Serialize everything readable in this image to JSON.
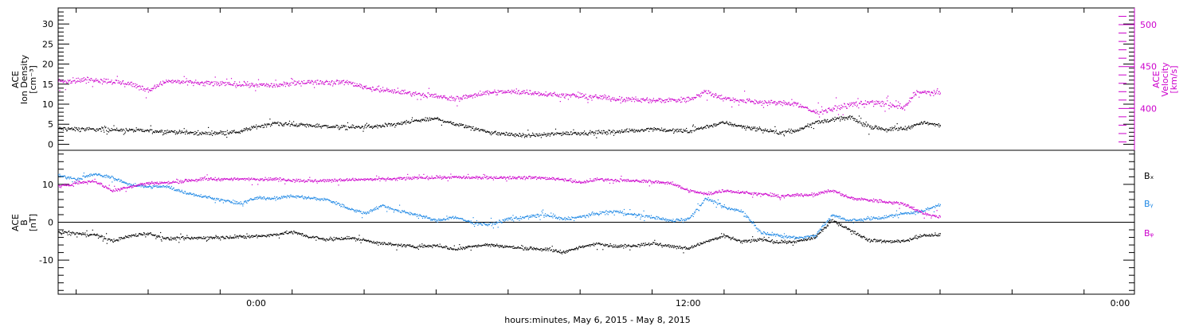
{
  "colors": {
    "black": "#000000",
    "magenta": "#cc00cc",
    "blue": "#1e88e5"
  },
  "xaxis": {
    "label": "hours:minutes, May  6, 2015 - May  8, 2015",
    "tick_labels": [
      "0:00",
      "12:00",
      "0:00"
    ],
    "range_hours": [
      -5.5,
      24.4
    ]
  },
  "chart_data": [
    {
      "type": "scatter",
      "title": "",
      "ylabel": [
        "ACE",
        "Ion Density",
        "[cm⁻³]"
      ],
      "ylabel_right": [
        "ACE",
        "Velocity",
        "[km/s]"
      ],
      "ylim": [
        -1.5,
        34
      ],
      "ylim_right": [
        350,
        520
      ],
      "yticks": [
        0,
        5,
        10,
        15,
        20,
        25,
        30
      ],
      "yticks_right": [
        400,
        450,
        500
      ],
      "series": [
        {
          "axis": "left",
          "color": "black",
          "points": [
            [
              -5.5,
              4.0
            ],
            [
              -4.5,
              3.8
            ],
            [
              -3.5,
              3.6
            ],
            [
              -2.5,
              3.3
            ],
            [
              -1.5,
              2.8
            ],
            [
              -0.5,
              3.2
            ],
            [
              0.0,
              4.5
            ],
            [
              0.5,
              5.3
            ],
            [
              1.5,
              4.8
            ],
            [
              2.5,
              4.3
            ],
            [
              3.5,
              4.6
            ],
            [
              4.0,
              5.3
            ],
            [
              4.5,
              6.0
            ],
            [
              5.0,
              6.5
            ],
            [
              5.5,
              5.2
            ],
            [
              6.0,
              4.2
            ],
            [
              6.5,
              3.0
            ],
            [
              7.5,
              2.2
            ],
            [
              8.5,
              2.8
            ],
            [
              9.5,
              3.0
            ],
            [
              10.5,
              3.5
            ],
            [
              11.0,
              4.0
            ],
            [
              11.5,
              3.5
            ],
            [
              12.0,
              3.3
            ],
            [
              12.5,
              4.5
            ],
            [
              13.0,
              5.5
            ],
            [
              13.5,
              4.5
            ],
            [
              14.0,
              3.8
            ],
            [
              14.5,
              3.0
            ],
            [
              15.0,
              3.5
            ],
            [
              15.5,
              5.5
            ],
            [
              16.0,
              6.2
            ],
            [
              16.5,
              6.8
            ],
            [
              17.0,
              4.5
            ],
            [
              17.5,
              3.8
            ],
            [
              18.0,
              4.0
            ],
            [
              18.5,
              5.5
            ],
            [
              19.0,
              4.8
            ]
          ]
        },
        {
          "axis": "right",
          "color": "magenta",
          "points": [
            [
              -5.5,
              433
            ],
            [
              -4.5,
              435
            ],
            [
              -3.5,
              430
            ],
            [
              -3.0,
              422
            ],
            [
              -2.5,
              433
            ],
            [
              -1.5,
              431
            ],
            [
              -0.5,
              429
            ],
            [
              0.5,
              428
            ],
            [
              1.5,
              432
            ],
            [
              2.5,
              432
            ],
            [
              3.0,
              426
            ],
            [
              3.5,
              422
            ],
            [
              4.5,
              418
            ],
            [
              5.0,
              415
            ],
            [
              5.5,
              411
            ],
            [
              6.0,
              416
            ],
            [
              6.5,
              420
            ],
            [
              7.5,
              420
            ],
            [
              8.5,
              416
            ],
            [
              9.5,
              414
            ],
            [
              10.0,
              412
            ],
            [
              11.0,
              410
            ],
            [
              12.0,
              411
            ],
            [
              12.5,
              421
            ],
            [
              13.0,
              412
            ],
            [
              14.0,
              408
            ],
            [
              15.0,
              406
            ],
            [
              15.5,
              396
            ],
            [
              16.0,
              400
            ],
            [
              16.5,
              405
            ],
            [
              17.0,
              408
            ],
            [
              17.5,
              405
            ],
            [
              18.0,
              401
            ],
            [
              18.3,
              420
            ],
            [
              18.8,
              419
            ]
          ]
        }
      ]
    },
    {
      "type": "scatter",
      "title": "",
      "ylabel": [
        "ACE",
        "B",
        "[nT]"
      ],
      "ylim": [
        -19,
        19
      ],
      "yticks": [
        -10,
        0,
        10
      ],
      "zero_line": true,
      "legend": [
        "Bₓ",
        "Bᵧ",
        "Bᵩ"
      ],
      "series": [
        {
          "name": "Bₓ",
          "color": "black",
          "points": [
            [
              -5.5,
              -2.5
            ],
            [
              -4.5,
              -3.2
            ],
            [
              -4.0,
              -4.8
            ],
            [
              -3.5,
              -3.5
            ],
            [
              -3.0,
              -2.8
            ],
            [
              -2.5,
              -4.2
            ],
            [
              -1.5,
              -4.0
            ],
            [
              -0.5,
              -3.8
            ],
            [
              0.0,
              -3.6
            ],
            [
              0.5,
              -3.2
            ],
            [
              1.0,
              -2.4
            ],
            [
              1.5,
              -3.8
            ],
            [
              2.0,
              -4.5
            ],
            [
              2.5,
              -4.0
            ],
            [
              3.0,
              -4.6
            ],
            [
              3.5,
              -5.5
            ],
            [
              4.0,
              -6.0
            ],
            [
              4.5,
              -6.3
            ],
            [
              5.0,
              -6.0
            ],
            [
              5.5,
              -7.0
            ],
            [
              6.0,
              -6.2
            ],
            [
              6.5,
              -5.8
            ],
            [
              7.0,
              -6.4
            ],
            [
              7.5,
              -6.8
            ],
            [
              8.0,
              -7.0
            ],
            [
              8.5,
              -7.8
            ],
            [
              9.0,
              -6.5
            ],
            [
              9.5,
              -5.5
            ],
            [
              10.0,
              -6.3
            ],
            [
              10.5,
              -6.0
            ],
            [
              11.0,
              -5.5
            ],
            [
              11.5,
              -6.2
            ],
            [
              12.0,
              -6.8
            ],
            [
              12.5,
              -5.0
            ],
            [
              13.0,
              -3.5
            ],
            [
              13.5,
              -5.0
            ],
            [
              14.0,
              -4.5
            ],
            [
              14.5,
              -5.2
            ],
            [
              15.0,
              -5.0
            ],
            [
              15.5,
              -4.0
            ],
            [
              16.0,
              0.5
            ],
            [
              16.5,
              -2.0
            ],
            [
              17.0,
              -4.5
            ],
            [
              17.5,
              -5.0
            ],
            [
              18.0,
              -4.8
            ],
            [
              18.5,
              -3.5
            ],
            [
              19.0,
              -3.2
            ]
          ]
        },
        {
          "name": "Bᵧ",
          "color": "blue",
          "points": [
            [
              -5.5,
              12.5
            ],
            [
              -5.0,
              11.5
            ],
            [
              -4.5,
              12.8
            ],
            [
              -4.0,
              11.8
            ],
            [
              -3.5,
              10.0
            ],
            [
              -3.0,
              9.5
            ],
            [
              -2.5,
              9.5
            ],
            [
              -2.0,
              8.0
            ],
            [
              -1.5,
              7.0
            ],
            [
              -1.0,
              6.0
            ],
            [
              -0.5,
              5.0
            ],
            [
              0.0,
              6.5
            ],
            [
              0.5,
              6.5
            ],
            [
              1.0,
              7.0
            ],
            [
              1.5,
              6.5
            ],
            [
              2.0,
              6.0
            ],
            [
              2.5,
              4.0
            ],
            [
              3.0,
              2.5
            ],
            [
              3.5,
              4.5
            ],
            [
              4.0,
              3.0
            ],
            [
              4.5,
              2.0
            ],
            [
              5.0,
              0.5
            ],
            [
              5.5,
              1.5
            ],
            [
              6.0,
              0.0
            ],
            [
              6.5,
              -0.5
            ],
            [
              7.0,
              1.0
            ],
            [
              7.5,
              1.5
            ],
            [
              8.0,
              2.0
            ],
            [
              8.5,
              1.0
            ],
            [
              9.0,
              1.5
            ],
            [
              9.5,
              2.5
            ],
            [
              10.0,
              3.0
            ],
            [
              10.5,
              2.0
            ],
            [
              11.0,
              1.5
            ],
            [
              11.5,
              0.5
            ],
            [
              12.0,
              1.0
            ],
            [
              12.5,
              6.5
            ],
            [
              13.0,
              4.0
            ],
            [
              13.5,
              3.0
            ],
            [
              14.0,
              -2.5
            ],
            [
              14.5,
              -3.5
            ],
            [
              15.0,
              -4.0
            ],
            [
              15.5,
              -3.5
            ],
            [
              16.0,
              2.0
            ],
            [
              16.5,
              0.5
            ],
            [
              17.0,
              1.0
            ],
            [
              17.5,
              1.5
            ],
            [
              18.0,
              2.5
            ],
            [
              18.5,
              3.0
            ],
            [
              19.0,
              4.8
            ]
          ]
        },
        {
          "name": "Bᵩ",
          "color": "magenta",
          "points": [
            [
              -5.5,
              9.5
            ],
            [
              -5.0,
              10.5
            ],
            [
              -4.5,
              11.0
            ],
            [
              -4.0,
              8.5
            ],
            [
              -3.5,
              9.5
            ],
            [
              -3.0,
              10.5
            ],
            [
              -2.5,
              10.5
            ],
            [
              -2.0,
              11.0
            ],
            [
              -1.5,
              11.5
            ],
            [
              -0.5,
              11.5
            ],
            [
              0.5,
              11.5
            ],
            [
              1.5,
              11.0
            ],
            [
              2.5,
              11.3
            ],
            [
              3.5,
              11.5
            ],
            [
              4.5,
              11.8
            ],
            [
              5.5,
              12.0
            ],
            [
              6.5,
              11.8
            ],
            [
              7.5,
              12.0
            ],
            [
              8.5,
              11.5
            ],
            [
              9.0,
              10.5
            ],
            [
              9.5,
              11.5
            ],
            [
              10.5,
              11.0
            ],
            [
              11.5,
              10.5
            ],
            [
              12.0,
              8.5
            ],
            [
              12.5,
              7.5
            ],
            [
              13.0,
              8.5
            ],
            [
              13.5,
              8.0
            ],
            [
              14.5,
              7.0
            ],
            [
              15.5,
              7.5
            ],
            [
              16.0,
              8.5
            ],
            [
              16.5,
              6.5
            ],
            [
              17.0,
              6.0
            ],
            [
              17.5,
              5.5
            ],
            [
              18.0,
              5.0
            ],
            [
              18.5,
              2.5
            ],
            [
              19.0,
              1.5
            ]
          ]
        }
      ]
    }
  ]
}
